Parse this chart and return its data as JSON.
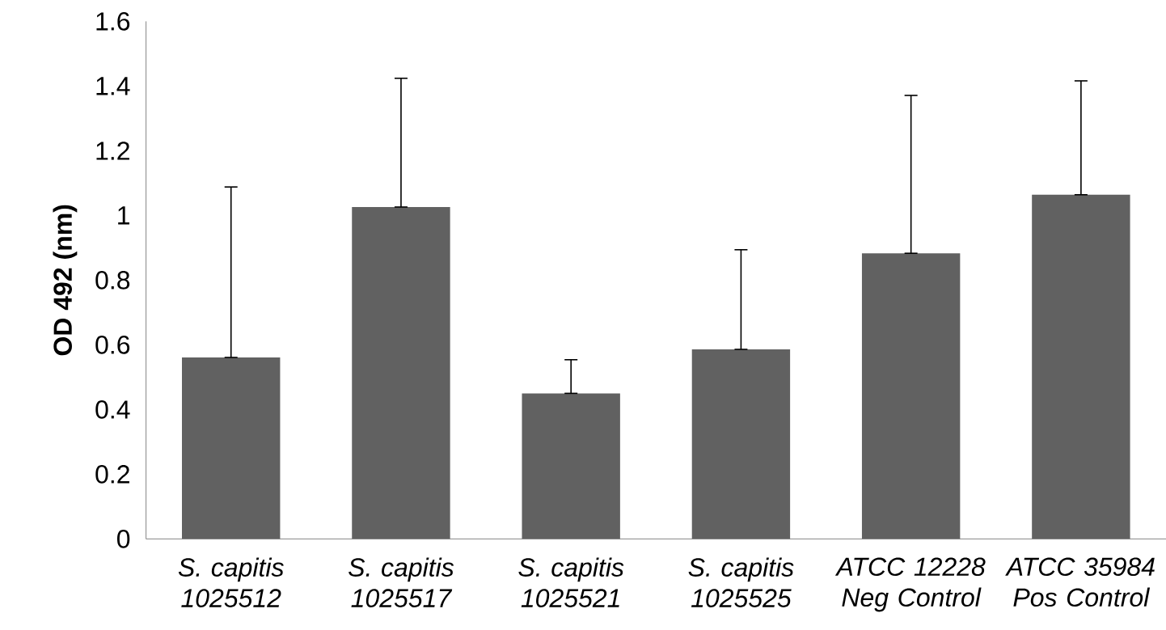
{
  "chart_data": {
    "type": "bar",
    "ylabel": "OD 492 (nm)",
    "categories": [
      "S. capitis 1025512",
      "S. capitis 1025517",
      "S. capitis 1025521",
      "S. capitis 1025525",
      "ATCC 12228 Neg Control",
      "ATCC 35984 Pos Control"
    ],
    "values": [
      0.561,
      1.026,
      0.45,
      0.586,
      0.883,
      1.064
    ],
    "errors": [
      [
        0.561,
        1.088
      ],
      [
        1.026,
        1.424
      ],
      [
        0.45,
        0.554
      ],
      [
        0.586,
        0.894
      ],
      [
        0.883,
        1.371
      ],
      [
        1.064,
        1.416
      ]
    ],
    "color": "#616161",
    "ylim": [
      0,
      1.6
    ],
    "yticks": [
      0,
      0.2,
      0.4,
      0.6,
      0.8,
      1,
      1.2,
      1.4,
      1.6
    ],
    "grid": false
  }
}
